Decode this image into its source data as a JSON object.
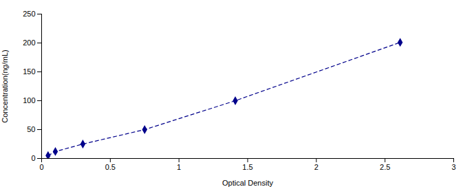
{
  "chart_data": {
    "type": "line",
    "x": [
      0.047,
      0.1,
      0.3,
      0.75,
      1.41,
      2.61
    ],
    "values": [
      5,
      12,
      25,
      50,
      100,
      201
    ],
    "color": "#00008B",
    "marker": "diamond",
    "line_style": "dashed",
    "xlabel": "Optical Density",
    "ylabel": "Concentration(ng/mL)",
    "xlim": [
      0,
      3
    ],
    "xticks": [
      0,
      0.5,
      1,
      1.5,
      2,
      2.5,
      3
    ],
    "ylim": [
      0,
      250
    ],
    "yticks": [
      0,
      50,
      100,
      150,
      200,
      250
    ]
  }
}
